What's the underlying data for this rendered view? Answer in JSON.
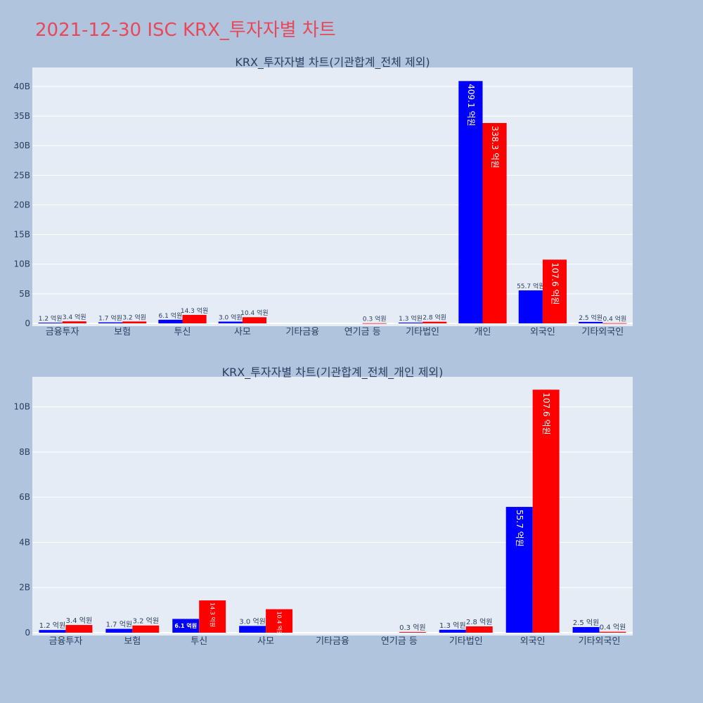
{
  "title": "2021-12-30 ISC KRX_투자자별 차트",
  "colors": {
    "buy": "#0000ff",
    "sell": "#ff0000",
    "plot_bg": "#e5ecf6",
    "paper_bg": "#b0c4de",
    "title": "#e8485a"
  },
  "chart_data": [
    {
      "type": "bar",
      "title": "KRX_투자자별 차트(기관합계_전체 제외)",
      "categories": [
        "금융투자",
        "보험",
        "투신",
        "사모",
        "기타금융",
        "연기금 등",
        "기타법인",
        "개인",
        "외국인",
        "기타외국인"
      ],
      "series": [
        {
          "color": "#0000ff",
          "values": [
            0.12,
            0.17,
            0.61,
            0.3,
            0,
            0,
            0.13,
            40.91,
            5.57,
            0.25
          ],
          "labels": [
            "1.2 억원",
            "1.7 억원",
            "6.1 억원",
            "3.0 억원",
            "",
            "",
            "1.3 억원",
            "409.1 억원",
            "55.7 억원",
            "2.5 억원"
          ]
        },
        {
          "color": "#ff0000",
          "values": [
            0.34,
            0.32,
            1.43,
            1.04,
            0,
            0.03,
            0.28,
            33.83,
            10.76,
            0.04
          ],
          "labels": [
            "3.4 억원",
            "3.2 억원",
            "14.3 억원",
            "10.4 억원",
            "",
            "0.3 억원",
            "2.8 억원",
            "338.3 억원",
            "107.6 억원",
            "0.4 억원"
          ]
        }
      ],
      "yticks": [
        "0",
        "5B",
        "10B",
        "15B",
        "20B",
        "25B",
        "30B",
        "35B",
        "40B"
      ],
      "ylim": [
        0,
        43.2
      ],
      "grid": true
    },
    {
      "type": "bar",
      "title": "KRX_투자자별 차트(기관합계_전체_개인 제외)",
      "categories": [
        "금융투자",
        "보험",
        "투신",
        "사모",
        "기타금융",
        "연기금 등",
        "기타법인",
        "외국인",
        "기타외국인"
      ],
      "series": [
        {
          "color": "#0000ff",
          "values": [
            0.12,
            0.17,
            0.61,
            0.3,
            0,
            0,
            0.13,
            5.57,
            0.25
          ],
          "labels": [
            "1.2 억원",
            "1.7 억원",
            "6.1 억원",
            "3.0 억원",
            "",
            "",
            "1.3 억원",
            "55.7 억원",
            "2.5 억원"
          ]
        },
        {
          "color": "#ff0000",
          "values": [
            0.34,
            0.32,
            1.43,
            1.04,
            0,
            0.03,
            0.28,
            10.76,
            0.04
          ],
          "labels": [
            "3.4 억원",
            "3.2 억원",
            "14.3 억원",
            "10.4 억원",
            "",
            "0.3 억원",
            "2.8 억원",
            "107.6 억원",
            "0.4 억원"
          ]
        }
      ],
      "yticks": [
        "0",
        "2B",
        "4B",
        "6B",
        "8B",
        "10B"
      ],
      "ylim": [
        0,
        11.33
      ],
      "grid": true
    }
  ]
}
